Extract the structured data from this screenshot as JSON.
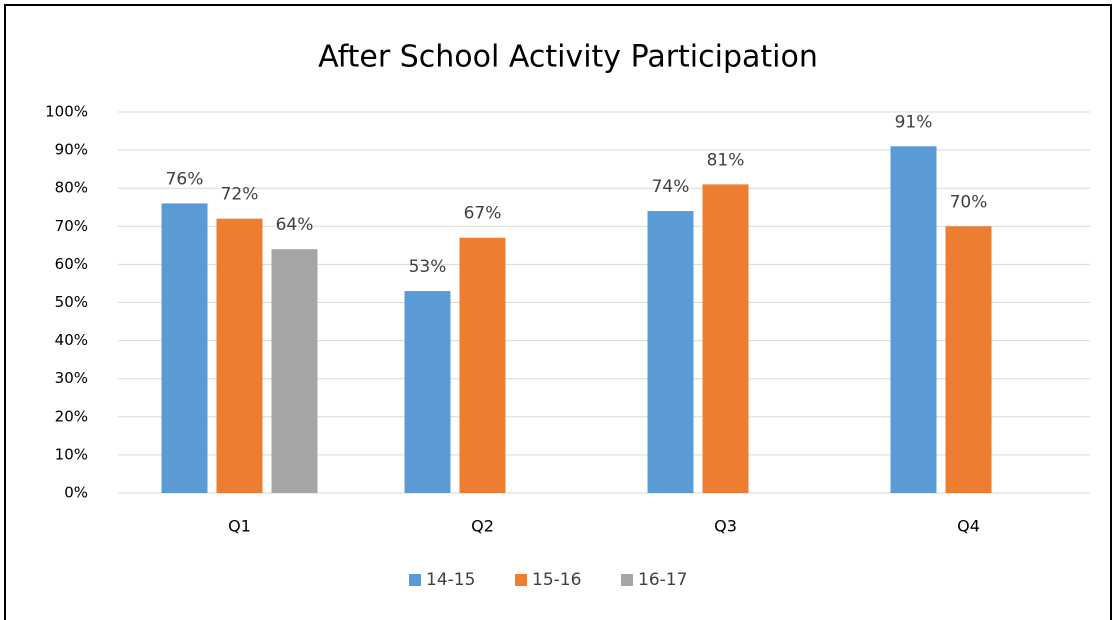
{
  "chart_data": {
    "type": "bar",
    "title": "After School Activity Participation",
    "categories": [
      "Q1",
      "Q2",
      "Q3",
      "Q4"
    ],
    "series": [
      {
        "name": "14-15",
        "color": "#5b9bd5",
        "values": [
          76,
          53,
          74,
          91
        ],
        "value_labels": [
          "76%",
          "53%",
          "74%",
          "91%"
        ]
      },
      {
        "name": "15-16",
        "color": "#ed7d31",
        "values": [
          72,
          67,
          81,
          70
        ],
        "value_labels": [
          "72%",
          "67%",
          "81%",
          "70%"
        ]
      },
      {
        "name": "16-17",
        "color": "#a5a5a5",
        "values": [
          64,
          null,
          null,
          null
        ],
        "value_labels": [
          "64%",
          null,
          null,
          null
        ]
      }
    ],
    "ylim": [
      0,
      100
    ],
    "yticks": [
      {
        "value": 0,
        "label": "0%"
      },
      {
        "value": 10,
        "label": "10%"
      },
      {
        "value": 20,
        "label": "20%"
      },
      {
        "value": 30,
        "label": "30%"
      },
      {
        "value": 40,
        "label": "40%"
      },
      {
        "value": 50,
        "label": "50%"
      },
      {
        "value": 60,
        "label": "60%"
      },
      {
        "value": 70,
        "label": "70%"
      },
      {
        "value": 80,
        "label": "80%"
      },
      {
        "value": 90,
        "label": "90%"
      },
      {
        "value": 100,
        "label": "100%"
      }
    ],
    "grid": true,
    "legend": "bottom"
  }
}
